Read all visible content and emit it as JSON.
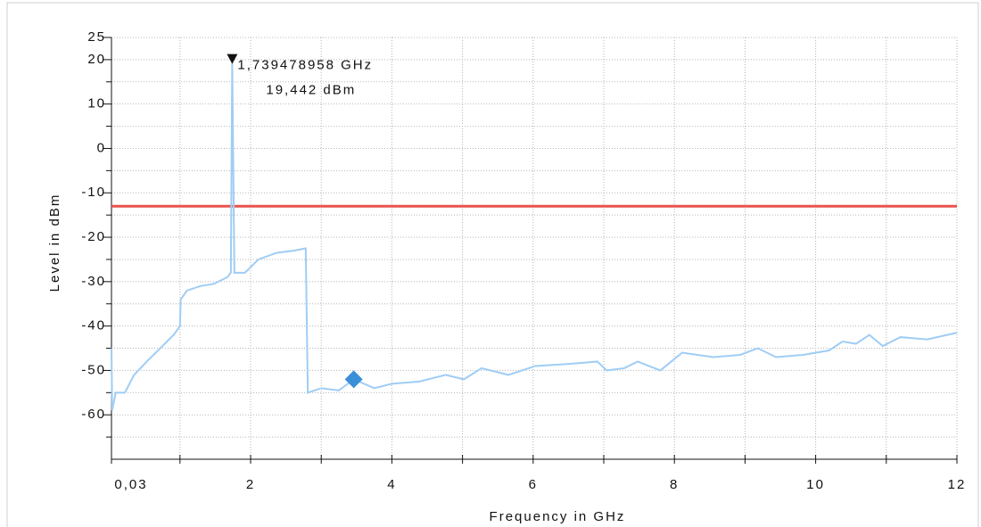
{
  "chart_data": {
    "type": "line",
    "xlabel": "Frequency in GHz",
    "ylabel": "Level in dBm",
    "x": [
      0.03,
      0.04,
      0.09,
      0.22,
      0.35,
      0.53,
      0.72,
      0.91,
      1.0,
      1.01,
      1.1,
      1.29,
      1.48,
      1.67,
      1.72,
      1.739478958,
      1.77,
      1.92,
      2.11,
      2.37,
      2.62,
      2.78,
      2.81,
      3.0,
      3.25,
      3.46,
      3.75,
      4.0,
      4.39,
      4.76,
      5.02,
      5.27,
      5.65,
      6.03,
      6.53,
      6.91,
      7.04,
      7.29,
      7.48,
      7.8,
      8.11,
      8.55,
      8.93,
      9.18,
      9.44,
      9.82,
      10.19,
      10.38,
      10.57,
      10.76,
      10.95,
      11.2,
      11.58,
      12.0
    ],
    "series": [
      {
        "color": "#9fcdf5",
        "values": [
          -45,
          -59,
          -55,
          -55,
          -51,
          -48,
          -45,
          -42,
          -40,
          -34,
          -32,
          -31,
          -30.5,
          -29,
          -28,
          19.442,
          -28,
          -28,
          -25,
          -23.5,
          -23,
          -22.5,
          -55,
          -54,
          -54.5,
          -52,
          -54,
          -53,
          -52.5,
          -51,
          -52,
          -49.5,
          -51,
          -49,
          -48.5,
          -48,
          -50,
          -49.5,
          -48,
          -50,
          -46,
          -47,
          -46.5,
          -45,
          -47,
          -46.5,
          -45.5,
          -43.5,
          -44,
          -42,
          -44.5,
          -42.5,
          -43,
          -41.5
        ]
      }
    ],
    "limit": {
      "value": -13,
      "color": "#e8534f"
    },
    "markers": [
      {
        "x": 1.739478958,
        "y": 19.442,
        "shape": "triangle",
        "color": "#111111",
        "labels": [
          "1,739478958 GHz",
          "19,442 dBm"
        ]
      },
      {
        "x": 3.46,
        "y": -52,
        "shape": "diamond",
        "color": "#3b8fd9"
      }
    ],
    "xlim": [
      0.03,
      12
    ],
    "ylim": [
      -70,
      25
    ],
    "xticks": [
      {
        "value": 0.03,
        "label": "0,03"
      },
      2,
      4,
      6,
      8,
      10,
      12
    ],
    "xminorticks": [
      1,
      3,
      5,
      7,
      9,
      11
    ],
    "yticks": [
      25,
      20,
      10,
      0,
      -10,
      -20,
      -30,
      -40,
      -50,
      -60
    ],
    "yminorticks": [
      15,
      5,
      -5,
      -15,
      -25,
      -35,
      -45,
      -55,
      -65
    ],
    "grid": true
  }
}
